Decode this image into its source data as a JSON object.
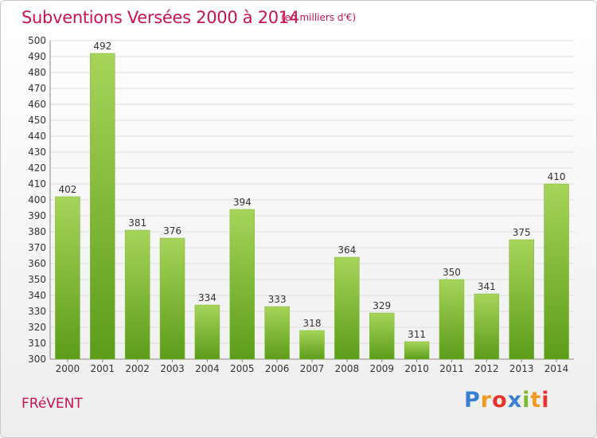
{
  "header": {
    "title": "Subventions Versées 2000 à 2014",
    "unit": "(en milliers d'€)"
  },
  "footer": {
    "place": "FRéVENT",
    "logo": {
      "letters": [
        "P",
        "r",
        "o",
        "x",
        "i",
        "t",
        "i"
      ],
      "colors": [
        "#3a7fd1",
        "#f29a1e",
        "#e8342c",
        "#3a7fd1",
        "#7dbb2f",
        "#f29a1e",
        "#e8342c"
      ]
    }
  },
  "colors": {
    "title": "#c8144e",
    "bar_light": "#a6d45a",
    "bar_dark": "#5d9c1a",
    "grid": "#dddddd"
  },
  "chart_data": {
    "type": "bar",
    "title": "Subventions Versées 2000 à 2014",
    "subtitle": "(en milliers d'€)",
    "xlabel": "",
    "ylabel": "",
    "categories": [
      "2000",
      "2001",
      "2002",
      "2003",
      "2004",
      "2005",
      "2006",
      "2007",
      "2008",
      "2009",
      "2010",
      "2011",
      "2012",
      "2013",
      "2014"
    ],
    "values": [
      402,
      492,
      381,
      376,
      334,
      394,
      333,
      318,
      364,
      329,
      311,
      350,
      341,
      375,
      410
    ],
    "ylim": [
      300,
      500
    ],
    "ytick_step": 10,
    "grid": true,
    "legend": "none"
  }
}
